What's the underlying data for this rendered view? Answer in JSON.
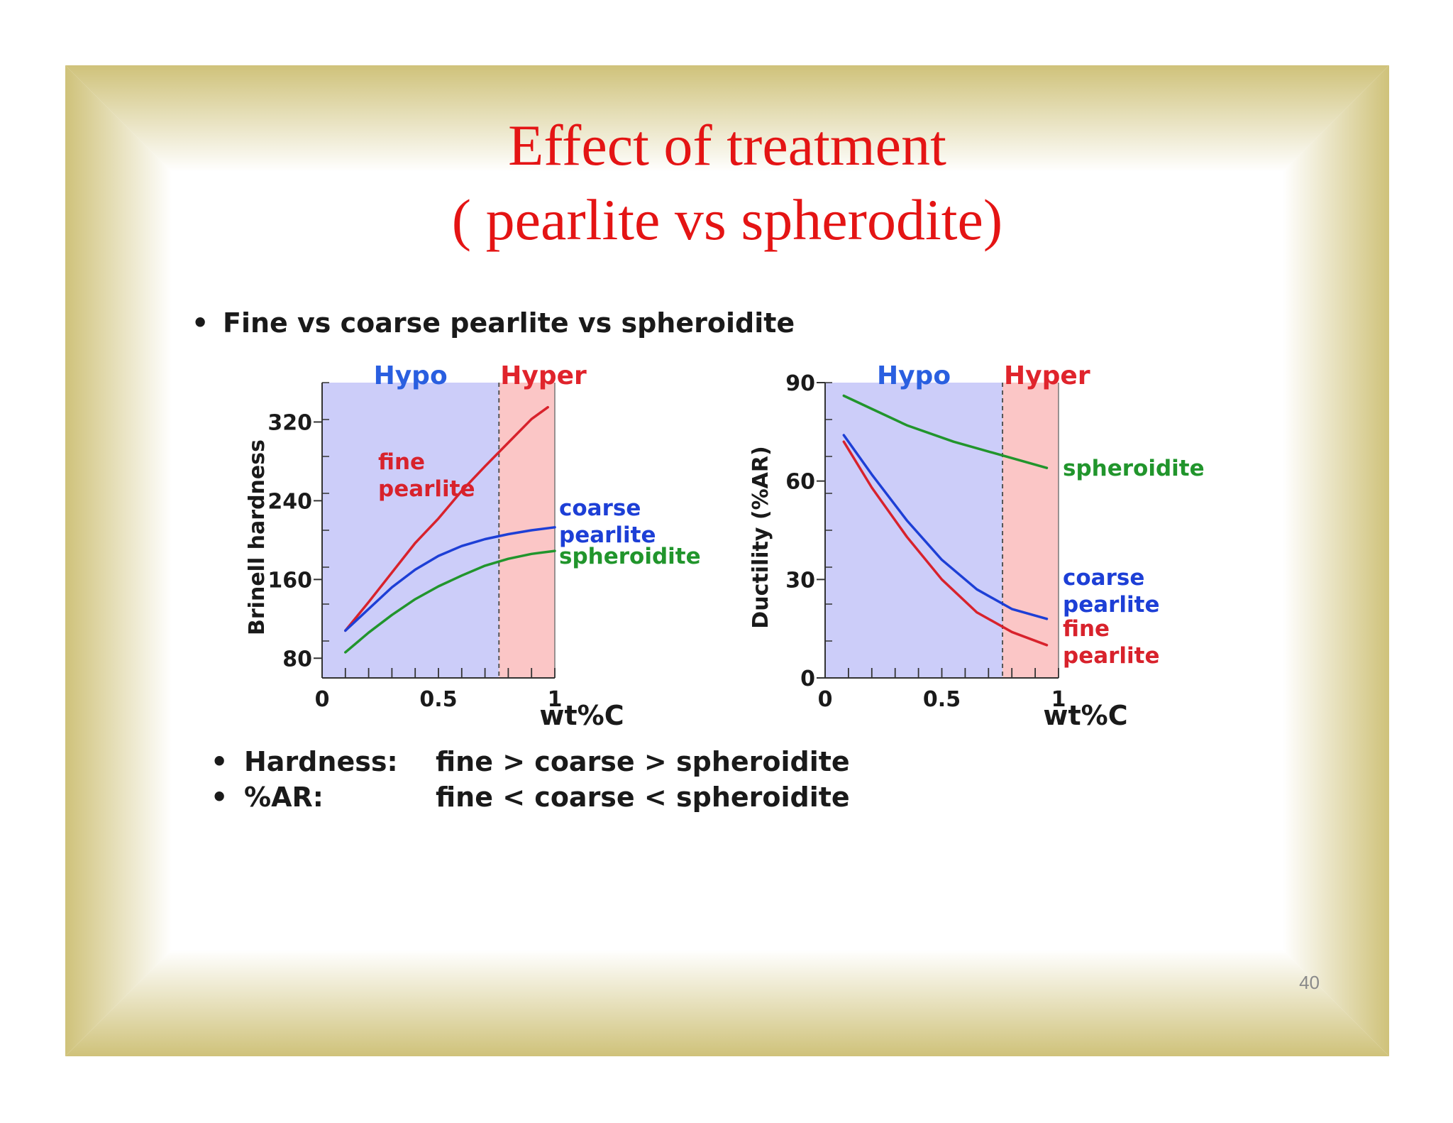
{
  "slide": {
    "title_line1": "Effect of treatment",
    "title_line2": "( pearlite vs spherodite)",
    "bullet_main": "Fine vs coarse pearlite vs spheroidite",
    "summary": [
      {
        "label": "Hardness:",
        "text": "fine > coarse > spheroidite"
      },
      {
        "label": "%AR:",
        "text": "fine < coarse < spheroidite"
      }
    ],
    "page_number": "40",
    "bullet_symbol": "•"
  },
  "colors": {
    "frame": "#cfc27a",
    "title": "#e41414",
    "hypo_fill": "#cccdf9",
    "hyper_fill": "#fbc6c6",
    "fine": "#d8222c",
    "coarse": "#1d3fd6",
    "spheroidite": "#21952c",
    "hypo_text": "#2a5fe0",
    "hyper_text": "#e0242c"
  },
  "chart_data": [
    {
      "type": "line",
      "ylabel": "Brinell hardness",
      "xlabel": "wt%C",
      "xlim": [
        0,
        1
      ],
      "ylim": [
        60,
        360
      ],
      "xticks": [
        "0",
        "0.5",
        "1"
      ],
      "yticks": [
        "80",
        "160",
        "240",
        "320"
      ],
      "eutectoid_x": 0.76,
      "regions": [
        "Hypo",
        "Hyper"
      ],
      "series": [
        {
          "key": "fine",
          "label_lines": [
            "fine",
            "pearlite"
          ],
          "x": [
            0.1,
            0.2,
            0.3,
            0.4,
            0.5,
            0.6,
            0.7,
            0.8,
            0.9,
            0.97
          ],
          "y": [
            108,
            137,
            167,
            197,
            222,
            250,
            275,
            299,
            323,
            335
          ]
        },
        {
          "key": "coarse",
          "label_lines": [
            "coarse",
            "pearlite"
          ],
          "x": [
            0.1,
            0.2,
            0.3,
            0.4,
            0.5,
            0.6,
            0.7,
            0.8,
            0.9,
            1.0
          ],
          "y": [
            108,
            130,
            152,
            170,
            184,
            194,
            201,
            206,
            210,
            213
          ]
        },
        {
          "key": "spheroidite",
          "label_lines": [
            "spheroidite"
          ],
          "x": [
            0.1,
            0.2,
            0.3,
            0.4,
            0.5,
            0.6,
            0.7,
            0.8,
            0.9,
            1.0
          ],
          "y": [
            86,
            106,
            124,
            140,
            153,
            164,
            174,
            181,
            186,
            189
          ]
        }
      ]
    },
    {
      "type": "line",
      "ylabel": "Ductility (%AR)",
      "xlabel": "wt%C",
      "xlim": [
        0,
        1
      ],
      "ylim": [
        0,
        90
      ],
      "xticks": [
        "0",
        "0.5",
        "1"
      ],
      "yticks": [
        "0",
        "30",
        "60",
        "90"
      ],
      "eutectoid_x": 0.76,
      "regions": [
        "Hypo",
        "Hyper"
      ],
      "series": [
        {
          "key": "spheroidite",
          "label_lines": [
            "spheroidite"
          ],
          "x": [
            0.08,
            0.2,
            0.35,
            0.55,
            0.75,
            0.95
          ],
          "y": [
            86,
            82,
            77,
            72,
            68,
            64
          ]
        },
        {
          "key": "coarse",
          "label_lines": [
            "coarse",
            "pearlite"
          ],
          "x": [
            0.08,
            0.2,
            0.35,
            0.5,
            0.65,
            0.8,
            0.95
          ],
          "y": [
            74,
            62,
            48,
            36,
            27,
            21,
            18
          ]
        },
        {
          "key": "fine",
          "label_lines": [
            "fine",
            "pearlite"
          ],
          "x": [
            0.08,
            0.2,
            0.35,
            0.5,
            0.65,
            0.8,
            0.95
          ],
          "y": [
            72,
            58,
            43,
            30,
            20,
            14,
            10
          ]
        }
      ]
    }
  ]
}
